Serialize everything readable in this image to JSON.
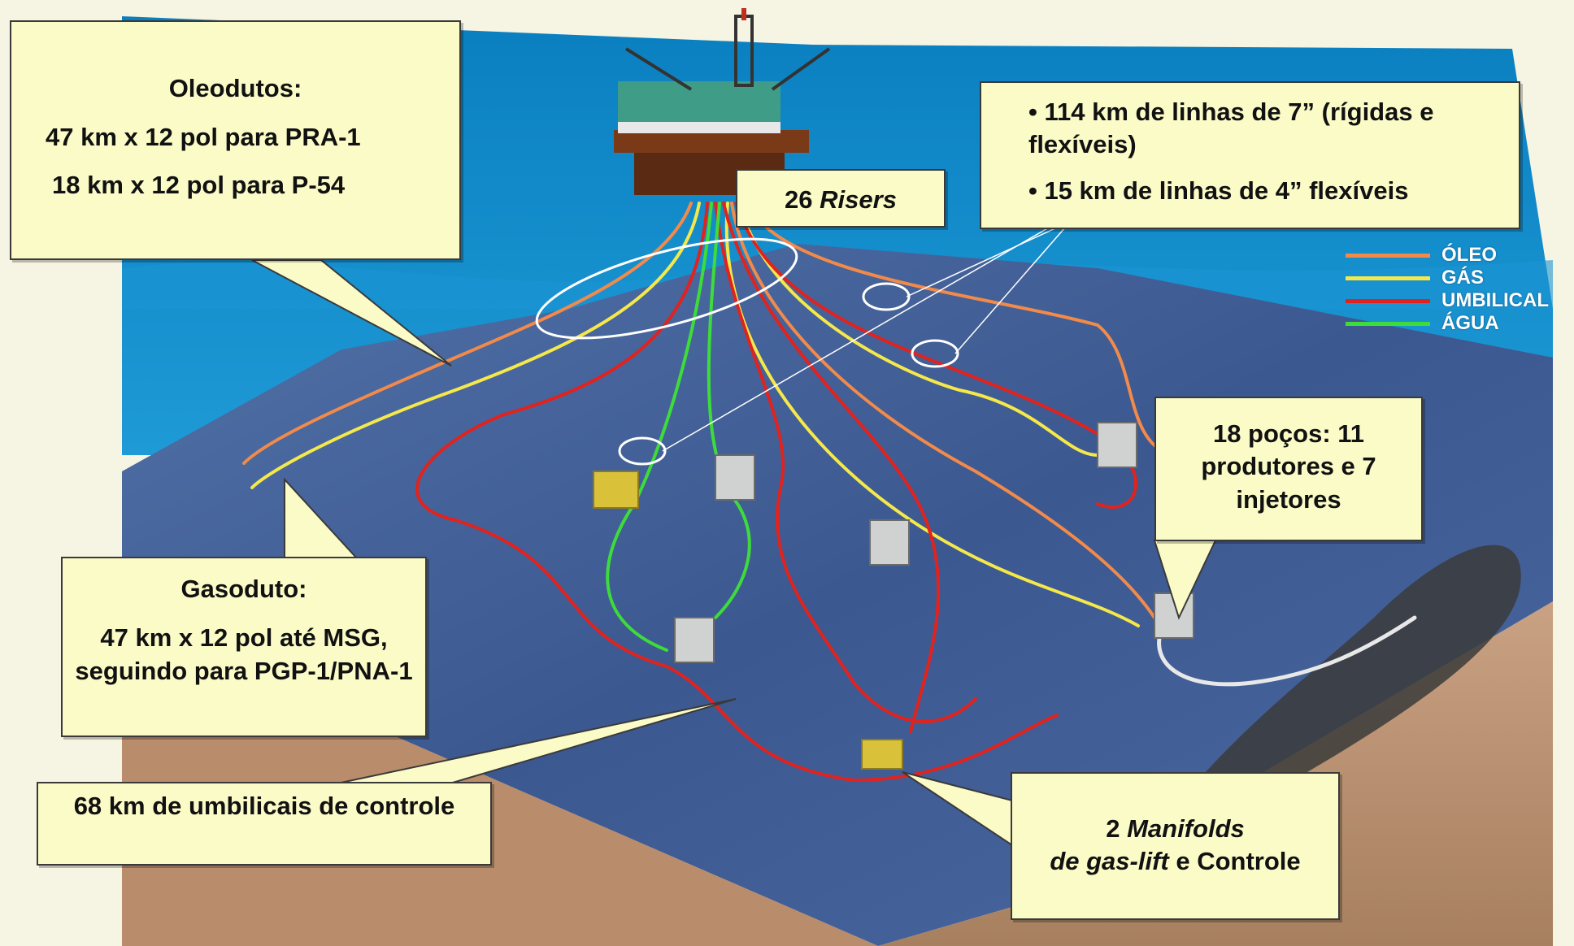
{
  "callouts": {
    "oleodutos": {
      "title": "Oleodutos:",
      "line1": "47 km x 12 pol para PRA-1",
      "line2": "18 km x 12 pol para P-54"
    },
    "risers": {
      "number": "26",
      "label": "Risers"
    },
    "linhas": {
      "line1": "• 114 km de linhas de 7” (rígidas e flexíveis)",
      "line2": "• 15 km de linhas de 4” flexíveis"
    },
    "pocos": {
      "text": "18 poços: 11 produtores e 7 injetores"
    },
    "gasoduto": {
      "title": "Gasoduto:",
      "text": "47 km x 12 pol até MSG, seguindo para PGP-1/PNA-1"
    },
    "umbilicais": {
      "text": "68 km de umbilicais de controle"
    },
    "manifolds": {
      "number": "2",
      "word_manifolds": "Manifolds",
      "word_de": "de",
      "word_gaslift": "gas-lift",
      "word_rest": "e Controle"
    }
  },
  "legend": [
    {
      "label": "ÓLEO",
      "color": "#f28a4a"
    },
    {
      "label": "GÁS",
      "color": "#f5e84a"
    },
    {
      "label": "UMBILICAL",
      "color": "#e0231e"
    },
    {
      "label": "ÁGUA",
      "color": "#3ddc3a"
    }
  ],
  "colors": {
    "ocean_top": "#0b86c4",
    "seabed": "#3f5d96",
    "soil": "#c9a183",
    "callout_bg": "#fbfbc8",
    "oil": "#f28a4a",
    "gas": "#f5e84a",
    "umbilical": "#e0231e",
    "water": "#3ddc3a"
  }
}
